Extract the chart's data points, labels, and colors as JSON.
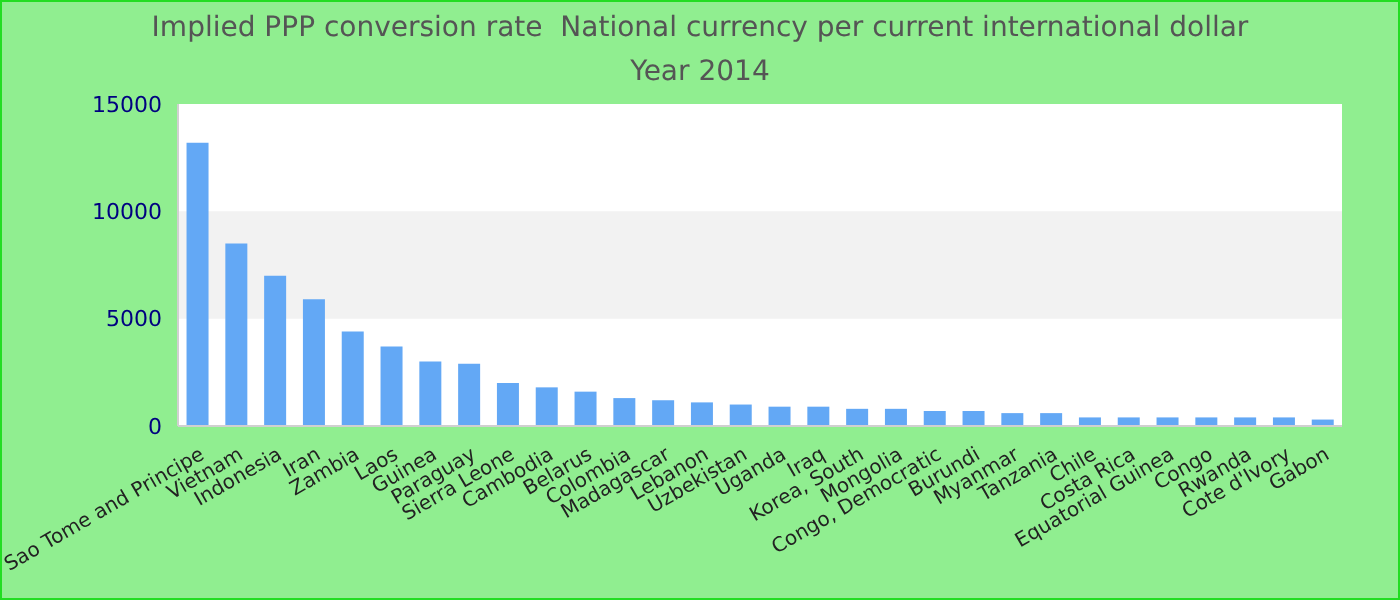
{
  "chart_data": {
    "type": "bar",
    "title": "Implied PPP conversion rate  National currency per current international dollar",
    "subtitle": "Year 2014",
    "categories": [
      "Sao Tome and Principe",
      "Vietnam",
      "Indonesia",
      "Iran",
      "Zambia",
      "Laos",
      "Guinea",
      "Paraguay",
      "Sierra Leone",
      "Cambodia",
      "Belarus",
      "Colombia",
      "Madagascar",
      "Lebanon",
      "Uzbekistan",
      "Uganda",
      "Iraq",
      "Korea, South",
      "Mongolia",
      "Congo, Democratic",
      "Burundi",
      "Myanmar",
      "Tanzania",
      "Chile",
      "Costa Rica",
      "Equatorial Guinea",
      "Congo",
      "Rwanda",
      "Cote d'Ivory",
      "Gabon"
    ],
    "values": [
      13200,
      8500,
      7000,
      5900,
      4400,
      3700,
      3000,
      2900,
      2000,
      1800,
      1600,
      1300,
      1200,
      1100,
      1000,
      900,
      900,
      800,
      800,
      700,
      700,
      600,
      600,
      400,
      400,
      400,
      400,
      400,
      400,
      300
    ],
    "color": "#63a8f5",
    "ylim": [
      0,
      15000
    ],
    "yticks": [
      0,
      5000,
      10000,
      15000
    ],
    "bands": [
      {
        "axis": "y",
        "from": 5000,
        "to": 10000,
        "color": "#f2f2f2"
      }
    ]
  }
}
